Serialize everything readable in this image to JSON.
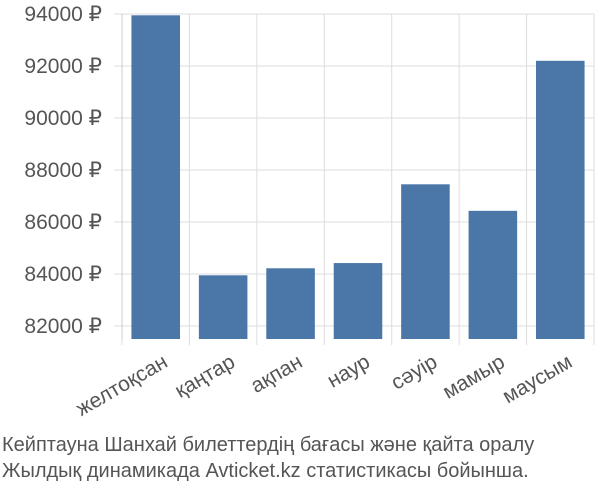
{
  "chart_data": {
    "type": "bar",
    "categories": [
      "желтоқсан",
      "қаңтар",
      "ақпан",
      "наур",
      "сәуір",
      "мамыр",
      "маусым"
    ],
    "values": [
      93950,
      83950,
      84220,
      84420,
      87450,
      86430,
      92200
    ],
    "ylim": [
      81500,
      94000
    ],
    "yticks": [
      82000,
      84000,
      86000,
      88000,
      90000,
      92000,
      94000
    ],
    "ytick_labels": [
      "82000 ₽",
      "84000 ₽",
      "86000 ₽",
      "88000 ₽",
      "90000 ₽",
      "92000 ₽",
      "94000 ₽"
    ],
    "grid": true,
    "bar_color": "#4a76a8",
    "grid_color": "#dddddd"
  },
  "caption": {
    "line1": "Кейптауна Шанхай билеттердің бағасы және қайта оралу",
    "line2": "Жылдық динамикада Avticket.kz статистикасы бойынша."
  }
}
